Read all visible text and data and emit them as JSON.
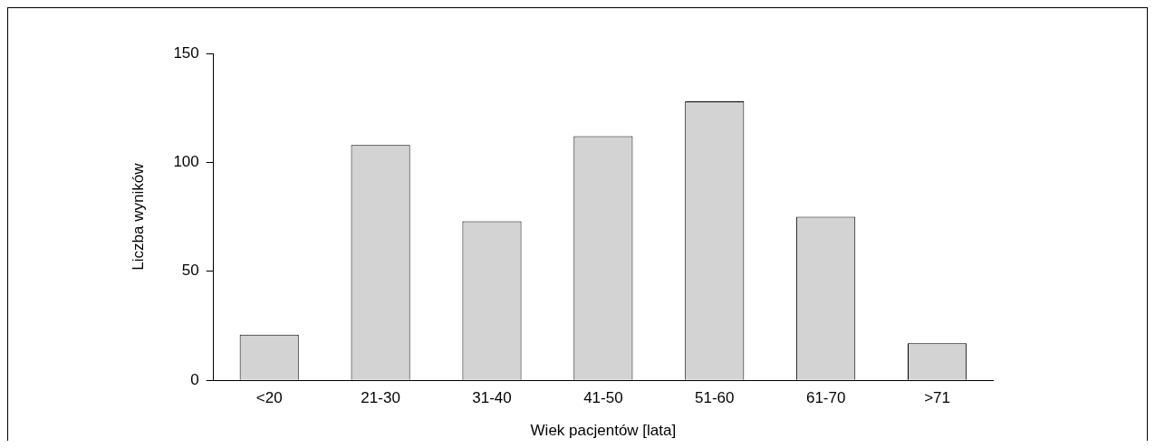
{
  "chart_data": {
    "type": "bar",
    "xlabel": "Wiek pacjentów [lata]",
    "ylabel": "Liczba wyników",
    "categories": [
      "<20",
      "21-30",
      "31-40",
      "41-50",
      "51-60",
      "61-70",
      ">71"
    ],
    "values": [
      21,
      108,
      73,
      112,
      128,
      75,
      17
    ],
    "color": "#d3d3d3",
    "ylim": [
      0,
      150
    ],
    "yticks": [
      0,
      50,
      100,
      150
    ],
    "grid": false,
    "legend": false
  }
}
